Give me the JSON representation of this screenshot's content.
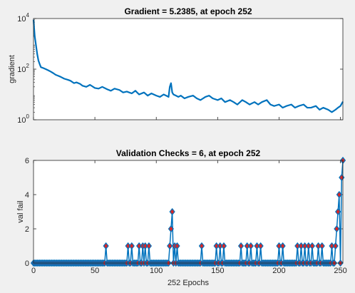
{
  "window": {
    "background": "#f0f0f0",
    "axes_background": "#ffffff"
  },
  "chart_data": [
    {
      "type": "line",
      "title": "Gradient = 5.2385, at epoch 252",
      "xlabel": "",
      "ylabel": "gradient",
      "yscale": "log",
      "xlim": [
        0,
        252
      ],
      "ylim": [
        1,
        10000
      ],
      "yticks": [
        "10^0",
        "10^2",
        "10^4"
      ],
      "yticks_display": [
        {
          "base": "10",
          "exp": "0"
        },
        {
          "base": "10",
          "exp": "2"
        },
        {
          "base": "10",
          "exp": "4"
        }
      ],
      "grid": false,
      "line_color": "#0072bd",
      "series": [
        {
          "x": [
            0,
            1,
            2,
            3,
            4,
            5,
            6,
            8,
            10,
            12,
            14,
            16,
            18,
            20,
            22,
            25,
            28,
            30,
            33,
            35,
            38,
            40,
            43,
            46,
            50,
            53,
            56,
            60,
            63,
            66,
            70,
            73,
            76,
            80,
            83,
            86,
            90,
            93,
            96,
            100,
            103,
            106,
            108,
            110,
            111,
            112,
            113,
            114,
            116,
            118,
            120,
            123,
            126,
            130,
            133,
            136,
            140,
            143,
            146,
            150,
            153,
            156,
            160,
            163,
            166,
            170,
            173,
            176,
            180,
            183,
            186,
            190,
            193,
            196,
            200,
            203,
            206,
            210,
            213,
            216,
            220,
            223,
            226,
            230,
            233,
            236,
            240,
            243,
            246,
            248,
            250,
            252
          ],
          "y": [
            9000,
            2000,
            900,
            400,
            220,
            160,
            120,
            110,
            100,
            90,
            80,
            70,
            60,
            55,
            50,
            42,
            38,
            35,
            28,
            30,
            26,
            22,
            20,
            24,
            18,
            17,
            20,
            16,
            14,
            17,
            15,
            12,
            13,
            11,
            14,
            10,
            12,
            9,
            11,
            9,
            8,
            10,
            9,
            8,
            20,
            28,
            12,
            10,
            9,
            8,
            9,
            7,
            8,
            9,
            7,
            6,
            8,
            9,
            7,
            6,
            7,
            5,
            6,
            5,
            4,
            6,
            5,
            4,
            5,
            4,
            5,
            6,
            4,
            3.5,
            4,
            3,
            3.5,
            4,
            3,
            3.5,
            4,
            3,
            3,
            3.5,
            2.5,
            3,
            2.5,
            2,
            2.5,
            3,
            3.5,
            5.2385
          ]
        }
      ]
    },
    {
      "type": "scatter",
      "title": "Validation Checks = 6, at epoch 252",
      "xlabel": "252 Epochs",
      "ylabel": "val fail",
      "xlim": [
        0,
        252
      ],
      "ylim": [
        0,
        6
      ],
      "xticks": [
        0,
        50,
        100,
        150,
        200,
        250
      ],
      "yticks": [
        0,
        2,
        4,
        6
      ],
      "grid": false,
      "line_color": "#0072bd",
      "marker": "diamond",
      "marker_edge": "#0072bd",
      "marker_face": "#d62728",
      "series": [
        {
          "nonzero_points": [
            [
              59,
              1
            ],
            [
              77,
              1
            ],
            [
              80,
              1
            ],
            [
              86,
              1
            ],
            [
              89,
              1
            ],
            [
              91,
              1
            ],
            [
              94,
              1
            ],
            [
              111,
              1
            ],
            [
              112,
              2
            ],
            [
              113,
              3
            ],
            [
              115,
              1
            ],
            [
              117,
              1
            ],
            [
              137,
              1
            ],
            [
              149,
              1
            ],
            [
              152,
              1
            ],
            [
              155,
              1
            ],
            [
              169,
              1
            ],
            [
              174,
              1
            ],
            [
              177,
              1
            ],
            [
              182,
              1
            ],
            [
              185,
              1
            ],
            [
              200,
              1
            ],
            [
              203,
              1
            ],
            [
              215,
              1
            ],
            [
              218,
              1
            ],
            [
              221,
              1
            ],
            [
              224,
              1
            ],
            [
              227,
              1
            ],
            [
              232,
              1
            ],
            [
              235,
              1
            ],
            [
              243,
              1
            ],
            [
              246,
              1
            ],
            [
              247,
              2
            ],
            [
              248,
              3
            ],
            [
              249,
              4
            ],
            [
              251,
              5
            ],
            [
              252,
              6
            ]
          ]
        }
      ]
    }
  ]
}
